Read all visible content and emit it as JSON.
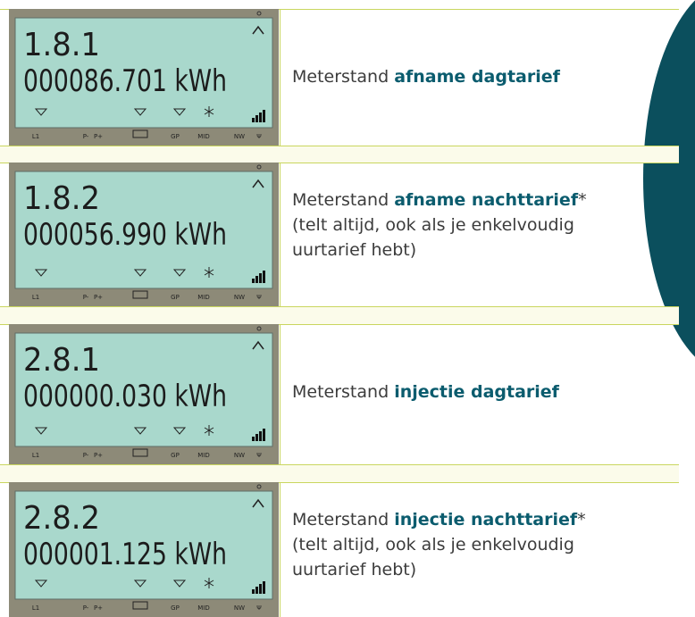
{
  "meter_labels": [
    "L1",
    "P-",
    "P+",
    "GP",
    "MID",
    "NW",
    "Ψ"
  ],
  "rows": [
    {
      "code": "1.8.1",
      "reading": "000086.701 kWh",
      "prefix": "Meterstand",
      "bold": "afname dagtarief"
    },
    {
      "code": "1.8.2",
      "reading": "000056.990 kWh",
      "prefix": "Meterstand",
      "bold": "afname nachttarief",
      "suffix": "*",
      "note": "(telt altijd, ook als je enkelvoudig uurtarief hebt)"
    },
    {
      "code": "2.8.1",
      "reading": "000000.030 kWh",
      "prefix": "Meterstand",
      "bold": "injectie dagtarief"
    },
    {
      "code": "2.8.2",
      "reading": "000001.125 kWh",
      "prefix": "Meterstand",
      "bold": "injectie nachttarief",
      "suffix": "*",
      "note": "(telt altijd, ook als je enkelvoudig uurtarief hebt)"
    }
  ]
}
